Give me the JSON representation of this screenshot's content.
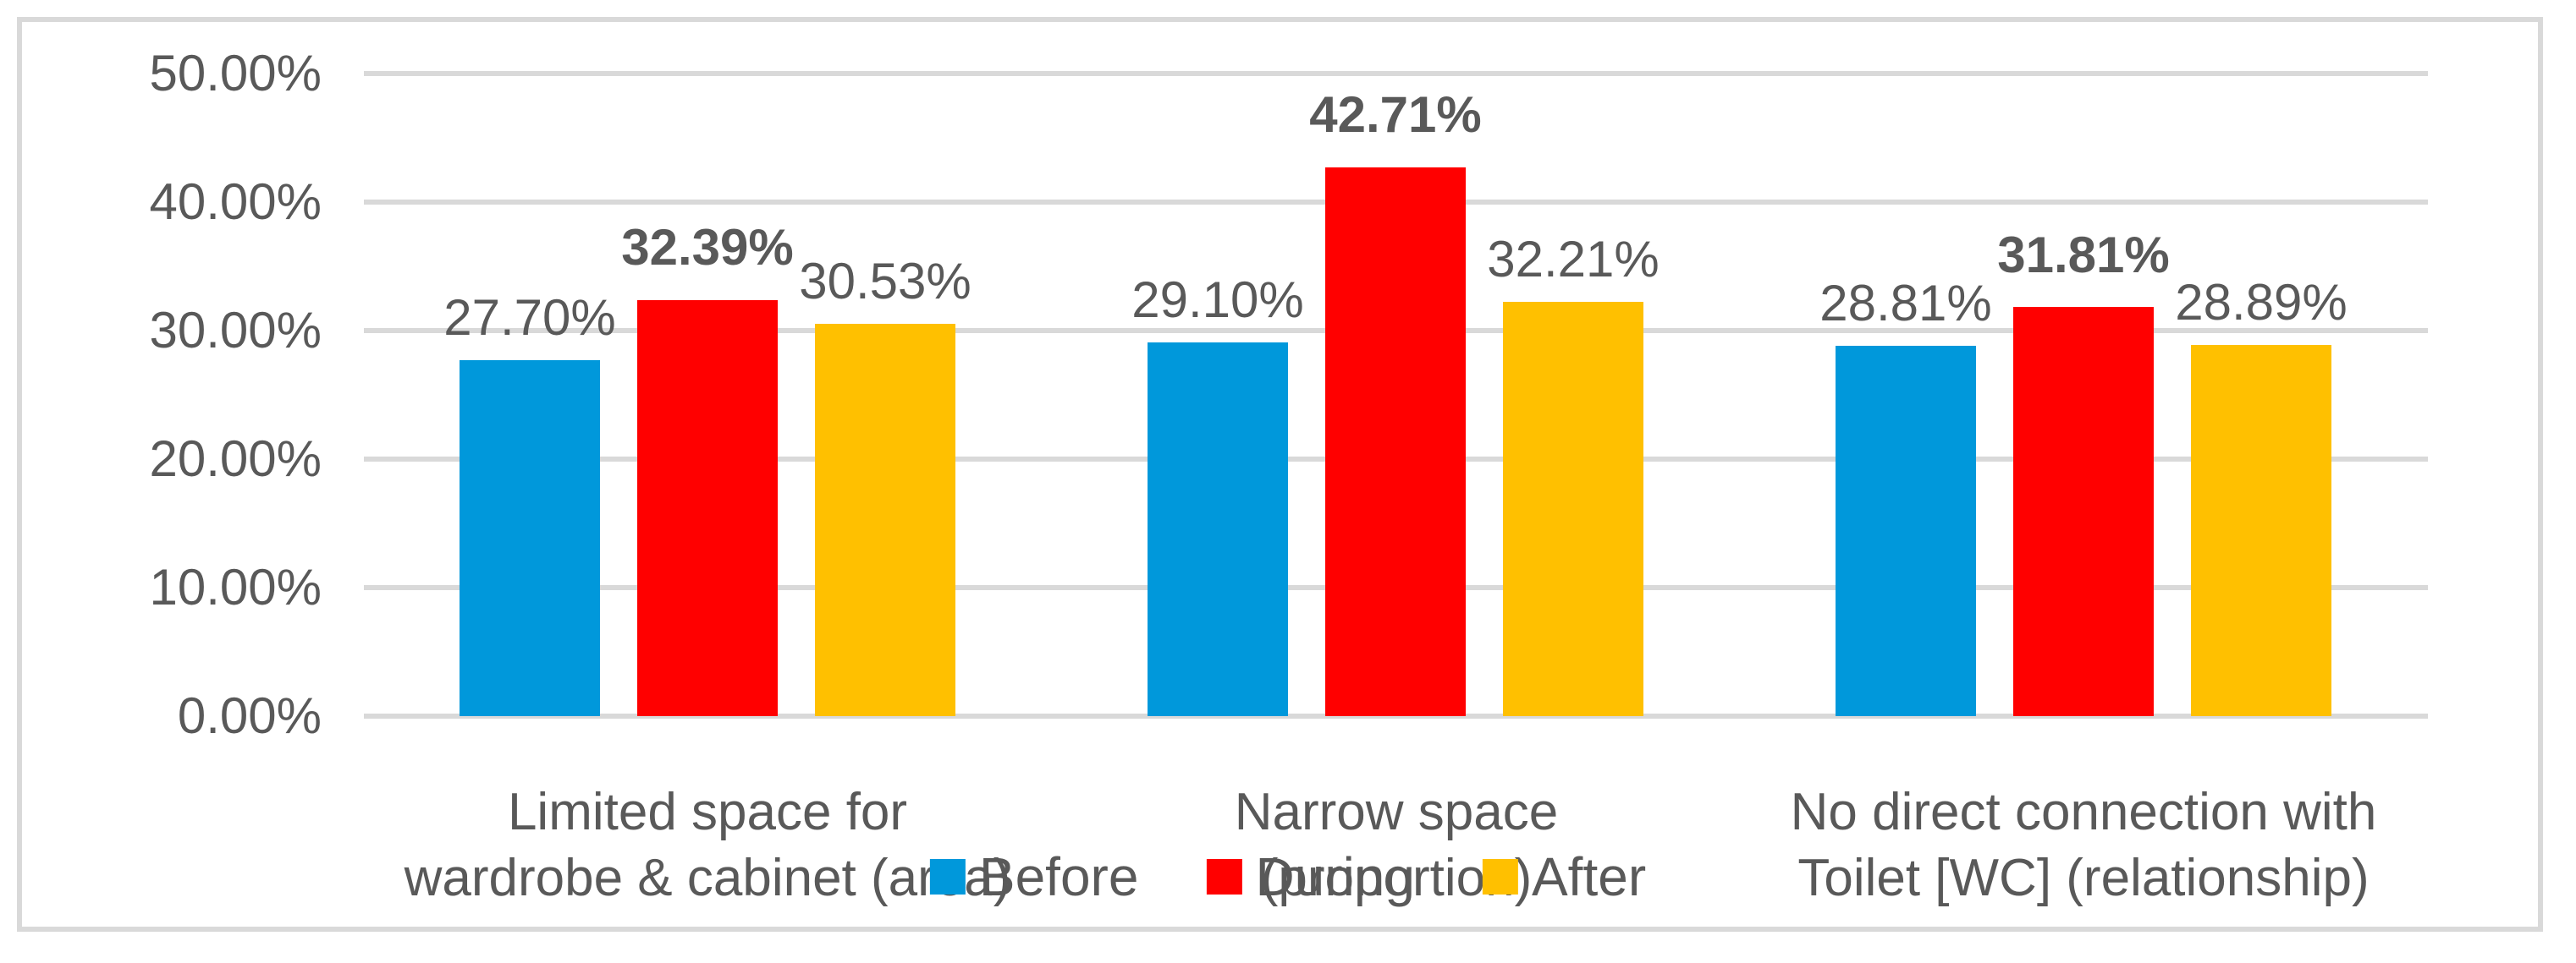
{
  "chart_data": {
    "type": "bar",
    "title": "",
    "xlabel": "",
    "ylabel": "",
    "categories": [
      "Limited space for wardrobe & cabinet (area)",
      "Narrow space (proportion)",
      "No direct connection with Toilet [WC] (relationship)"
    ],
    "category_lines": [
      [
        "Limited space for",
        "wardrobe & cabinet (area)"
      ],
      [
        "Narrow space",
        "(proportion)"
      ],
      [
        "No direct connection with",
        "Toilet [WC] (relationship)"
      ]
    ],
    "series": [
      {
        "name": "Before",
        "color": "#0098DB",
        "values": [
          27.7,
          29.1,
          28.81
        ],
        "labels": [
          "27.70%",
          "29.10%",
          "28.81%"
        ],
        "bold_labels": false
      },
      {
        "name": "During",
        "color": "#FF0000",
        "values": [
          32.39,
          42.71,
          31.81
        ],
        "labels": [
          "32.39%",
          "42.71%",
          "31.81%"
        ],
        "bold_labels": true
      },
      {
        "name": "After",
        "color": "#FFC000",
        "values": [
          30.53,
          32.21,
          28.89
        ],
        "labels": [
          "30.53%",
          "32.21%",
          "28.89%"
        ],
        "bold_labels": false
      }
    ],
    "y_axis": {
      "tick_labels": [
        "0.00%",
        "10.00%",
        "20.00%",
        "30.00%",
        "40.00%",
        "50.00%"
      ],
      "tick_values": [
        0,
        10,
        20,
        30,
        40,
        50
      ],
      "min": 0,
      "max": 50
    },
    "ylim": [
      0,
      50
    ],
    "grid": true,
    "legend": {
      "position": "bottom",
      "items": [
        "Before",
        "During",
        "After"
      ]
    },
    "styles": {
      "text_color": "#595959",
      "gridline_color": "#D9D9D9",
      "frame_color": "#D9D9D9",
      "background": "#FFFFFF"
    }
  }
}
